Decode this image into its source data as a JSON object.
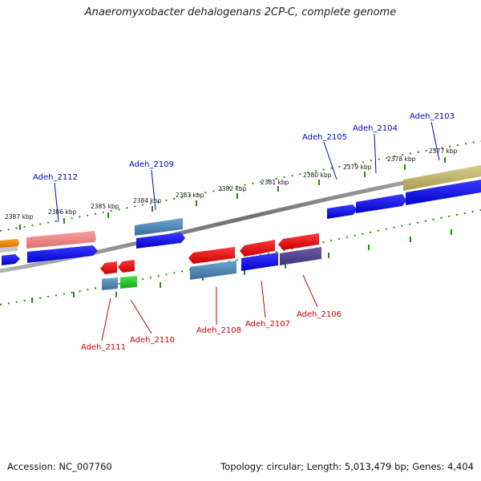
{
  "title": "Anaeromyxobacter dehalogenans 2CP-C, complete genome",
  "footer": {
    "accession": "Accession: NC_007760",
    "summary": "Topology: circular; Length: 5,013,479 bp; Genes: 4,404"
  },
  "colors": {
    "backbone": "#808080",
    "ruler_ticks": "#2a8a10",
    "label_forward": "#0000cc",
    "label_reverse": "#cc0000"
  },
  "ruler_labels": [
    "2387 kbp",
    "2386 kbp",
    "2385 kbp",
    "2384 kbp",
    "2383 kbp",
    "2382 kbp",
    "2381 kbp",
    "2380 kbp",
    "2379 kbp",
    "2378 kbp",
    "2377 kbp"
  ],
  "gene_labels_forward": [
    "Adeh_2112",
    "Adeh_2109",
    "Adeh_2105",
    "Adeh_2104",
    "Adeh_2103"
  ],
  "gene_labels_reverse": [
    "Adeh_2111",
    "Adeh_2110",
    "Adeh_2108",
    "Adeh_2107",
    "Adeh_2106"
  ],
  "feature_colors": [
    "orange",
    "light-gray",
    "salmon",
    "steel-blue",
    "blue",
    "red",
    "green",
    "slate-purple",
    "olive-khaki"
  ]
}
